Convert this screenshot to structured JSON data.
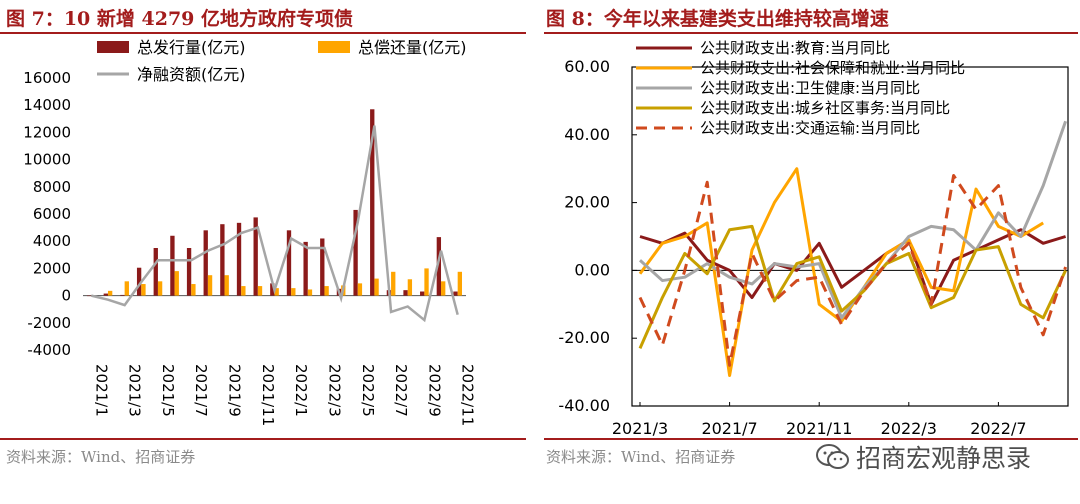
{
  "left": {
    "title": "图 7：10 新增 4279 亿地方政府专项债",
    "source": "资料来源：Wind、招商证券"
  },
  "right": {
    "title": "图 8：今年以来基建类支出维持较高增速",
    "source": "资料来源：Wind、招商证券"
  },
  "watermark": {
    "text": "招商宏观静思录",
    "icon": "wechat-icon"
  },
  "colors": {
    "accent": "#a31c1c"
  },
  "chart_data": [
    {
      "type": "bar",
      "categories": [
        "2021/1",
        "2021/2",
        "2021/3",
        "2021/4",
        "2021/5",
        "2021/6",
        "2021/7",
        "2021/8",
        "2021/9",
        "2021/10",
        "2021/11",
        "2021/12",
        "2022/1",
        "2022/2",
        "2022/3",
        "2022/4",
        "2022/5",
        "2022/6",
        "2022/7",
        "2022/8",
        "2022/9",
        "2022/10",
        "2022/11"
      ],
      "tick_labels": [
        "2021/1",
        "2021/3",
        "2021/5",
        "2021/7",
        "2021/9",
        "2021/11",
        "2022/1",
        "2022/3",
        "2022/5",
        "2022/7",
        "2022/9",
        "2022/11"
      ],
      "series": [
        {
          "name": "总发行量(亿元)",
          "kind": "bar",
          "color": "#8b1a1a",
          "values": [
            0,
            150,
            50,
            2050,
            3500,
            4400,
            3500,
            4800,
            5250,
            5350,
            5750,
            900,
            4800,
            3950,
            4200,
            500,
            6300,
            13700,
            400,
            400,
            300,
            4300,
            300
          ]
        },
        {
          "name": "总偿还量(亿元)",
          "kind": "bar",
          "color": "#ffa500",
          "values": [
            0,
            350,
            1050,
            850,
            1050,
            1800,
            850,
            1500,
            1500,
            700,
            700,
            550,
            550,
            450,
            700,
            750,
            900,
            1250,
            1750,
            1200,
            2000,
            1050,
            1750
          ]
        },
        {
          "name": "净融资额(亿元)",
          "kind": "line",
          "color": "#a6a6a6",
          "values": [
            0,
            -300,
            -700,
            1000,
            2600,
            2600,
            2600,
            3300,
            3800,
            4600,
            5000,
            400,
            4200,
            3500,
            3500,
            -200,
            5400,
            12500,
            -1200,
            -800,
            -1800,
            3300,
            -1400
          ]
        }
      ],
      "ylim": [
        -4000,
        16000
      ],
      "yticks": [
        -4000,
        -2000,
        0,
        2000,
        4000,
        6000,
        8000,
        10000,
        12000,
        14000,
        16000
      ],
      "legend": "top"
    },
    {
      "type": "line",
      "x": [
        "2021/1",
        "2021/2",
        "2021/3",
        "2021/4",
        "2021/5",
        "2021/6",
        "2021/7",
        "2021/8",
        "2021/9",
        "2021/10",
        "2021/11",
        "2021/12",
        "2022/1",
        "2022/2",
        "2022/3",
        "2022/4",
        "2022/5",
        "2022/6",
        "2022/7",
        "2022/8",
        "2022/9",
        "2022/10",
        "2022/11"
      ],
      "tick_labels": [
        "2021/3",
        "2021/7",
        "2021/11",
        "2022/3",
        "2022/7"
      ],
      "series": [
        {
          "name": "公共财政支出:教育:当月同比",
          "color": "#8b1a1a",
          "dash": false,
          "values": [
            null,
            null,
            10,
            8,
            11,
            3,
            0,
            -8,
            2,
            0,
            8,
            -5,
            0,
            5,
            9,
            -10,
            3,
            6,
            9,
            12,
            8,
            10,
            null
          ]
        },
        {
          "name": "公共财政支出:社会保障和就业:当月同比",
          "color": "#ffa500",
          "dash": false,
          "values": [
            null,
            null,
            -1,
            8,
            10,
            14,
            -31,
            6,
            20,
            30,
            -10,
            -15,
            -5,
            5,
            9,
            -5,
            -6,
            24,
            13,
            10,
            14,
            null,
            null
          ]
        },
        {
          "name": "公共财政支出:卫生健康:当月同比",
          "color": "#a6a6a6",
          "dash": false,
          "values": [
            null,
            null,
            3,
            -3,
            -2,
            2,
            -2,
            -4,
            2,
            1,
            2,
            -14,
            -5,
            2,
            10,
            13,
            12,
            6,
            17,
            10,
            25,
            44,
            null
          ]
        },
        {
          "name": "公共财政支出:城乡社区事务:当月同比",
          "color": "#c8a000",
          "dash": false,
          "values": [
            null,
            null,
            -23,
            -8,
            5,
            -1,
            12,
            13,
            -9,
            2,
            4,
            -12,
            -6,
            2,
            5,
            -11,
            -8,
            6,
            7,
            -10,
            -14,
            0,
            null
          ]
        },
        {
          "name": "公共财政支出:交通运输:当月同比",
          "color": "#d04a1e",
          "dash": true,
          "values": [
            null,
            null,
            -8,
            -22,
            0,
            26,
            -28,
            5,
            -9,
            -3,
            -2,
            -16,
            -6,
            2,
            8,
            -10,
            28,
            18,
            25,
            -5,
            -19,
            1,
            null
          ]
        }
      ],
      "ylim": [
        -40,
        60
      ],
      "yticks": [
        "-40.00",
        "-20.00",
        "0.00",
        "20.00",
        "40.00",
        "60.00"
      ],
      "legend": "top-left"
    }
  ]
}
